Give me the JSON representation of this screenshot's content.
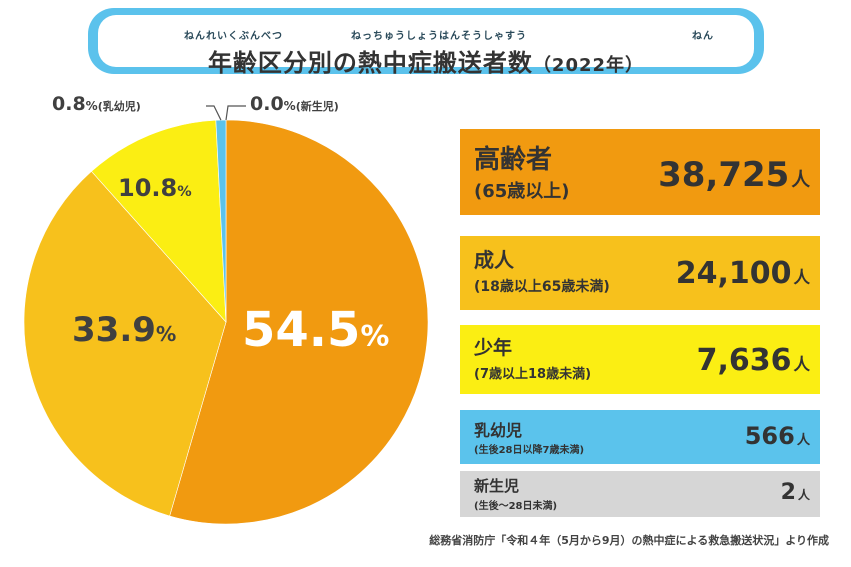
{
  "title": {
    "text": "年齢区分別の熱中症搬送者数",
    "year": "（2022年）",
    "ruby_1": "ねんれいくぶんべつ",
    "ruby_2": "ねっちゅうしょうはんそうしゃすう",
    "ruby_3": "ねん"
  },
  "chart_data": {
    "type": "pie",
    "title": "年齢区分別の熱中症搬送者数（2022年）",
    "slices": [
      {
        "label": "高齢者（65歳以上）",
        "percent": 54.5,
        "percent_text": "54.5",
        "count_text": "38,725",
        "color": "#f19a10"
      },
      {
        "label": "成人（18歳以上65歳未満）",
        "percent": 33.9,
        "percent_text": "33.9",
        "count_text": "24,100",
        "color": "#f7c11c"
      },
      {
        "label": "少年（7歳以上18歳未満）",
        "percent": 10.8,
        "percent_text": "10.8",
        "count_text": "7,636",
        "color": "#fbee13"
      },
      {
        "label": "乳幼児",
        "percent": 0.8,
        "percent_text": "0.8",
        "count_text": "566",
        "color": "#5bc3ec"
      },
      {
        "label": "新生児",
        "percent": 0.0,
        "percent_text": "0.0",
        "count_text": "2",
        "color": "#bdbdbd"
      }
    ],
    "percent_symbol": "%",
    "outside_names": {
      "infant": "(乳幼児)",
      "newborn": "(新生児)"
    }
  },
  "legend": [
    {
      "name": "高齢者",
      "sub": "(65歳以上)",
      "value": "38,725",
      "unit": "人",
      "color": "#f19a10"
    },
    {
      "name": "成人",
      "sub": "(18歳以上65歳未満)",
      "value": "24,100",
      "unit": "人",
      "color": "#f7c11c"
    },
    {
      "name": "少年",
      "sub": "(7歳以上18歳未満)",
      "value": "7,636",
      "unit": "人",
      "color": "#fbee13"
    },
    {
      "name": "乳幼児",
      "sub": "(生後28日以降7歳未満)",
      "value": "566",
      "unit": "人",
      "color": "#5bc3ec"
    },
    {
      "name": "新生児",
      "sub": "(生後〜28日未満)",
      "value": "2",
      "unit": "人",
      "color": "#d6d6d6"
    }
  ],
  "source": "総務省消防庁「令和４年（5月から9月）の熱中症による救急搬送状況」より作成"
}
